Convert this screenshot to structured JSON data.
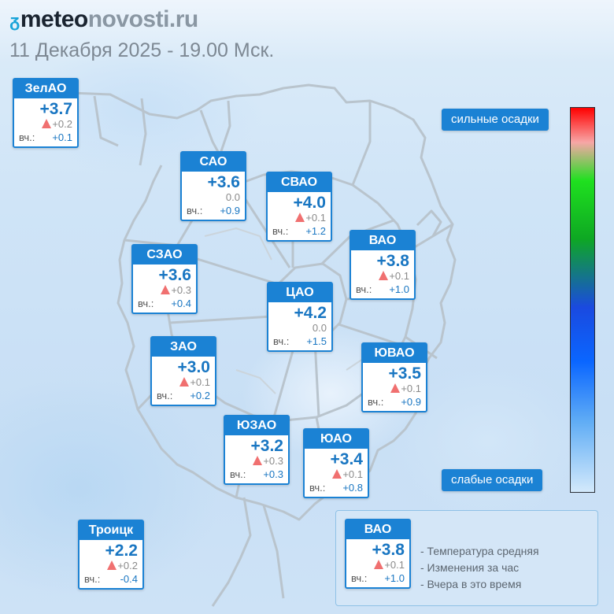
{
  "site": {
    "logo_mark": "ᵹ",
    "logo_part1": "meteo",
    "logo_part2": "novosti.ru"
  },
  "datetime": "11 Декабря 2025 - 19.00 Мск.",
  "scale": {
    "high_label": "сильные осадки",
    "low_label": "слабые осадки"
  },
  "districts": [
    {
      "id": "zelao",
      "name": "ЗелАО",
      "temp": "+3.7",
      "change": "+0.2",
      "trend": "up",
      "yesterday_label": "вч.:",
      "yesterday": "+0.1"
    },
    {
      "id": "sao",
      "name": "САО",
      "temp": "+3.6",
      "change": "0.0",
      "trend": "none",
      "yesterday_label": "вч.:",
      "yesterday": "+0.9"
    },
    {
      "id": "svao",
      "name": "СВАО",
      "temp": "+4.0",
      "change": "+0.1",
      "trend": "up",
      "yesterday_label": "вч.:",
      "yesterday": "+1.2"
    },
    {
      "id": "vao",
      "name": "ВАО",
      "temp": "+3.8",
      "change": "+0.1",
      "trend": "up",
      "yesterday_label": "вч.:",
      "yesterday": "+1.0"
    },
    {
      "id": "szao",
      "name": "СЗАО",
      "temp": "+3.6",
      "change": "+0.3",
      "trend": "up",
      "yesterday_label": "вч.:",
      "yesterday": "+0.4"
    },
    {
      "id": "cao",
      "name": "ЦАО",
      "temp": "+4.2",
      "change": "0.0",
      "trend": "none",
      "yesterday_label": "вч.:",
      "yesterday": "+1.5"
    },
    {
      "id": "zao",
      "name": "ЗАО",
      "temp": "+3.0",
      "change": "+0.1",
      "trend": "up",
      "yesterday_label": "вч.:",
      "yesterday": "+0.2"
    },
    {
      "id": "yuvao",
      "name": "ЮВАО",
      "temp": "+3.5",
      "change": "+0.1",
      "trend": "up",
      "yesterday_label": "вч.:",
      "yesterday": "+0.9"
    },
    {
      "id": "yuzao",
      "name": "ЮЗАО",
      "temp": "+3.2",
      "change": "+0.3",
      "trend": "up",
      "yesterday_label": "вч.:",
      "yesterday": "+0.3"
    },
    {
      "id": "yuao",
      "name": "ЮАО",
      "temp": "+3.4",
      "change": "+0.1",
      "trend": "up",
      "yesterday_label": "вч.:",
      "yesterday": "+0.8"
    },
    {
      "id": "troitsk",
      "name": "Троицк",
      "temp": "+2.2",
      "change": "+0.2",
      "trend": "up",
      "yesterday_label": "вч.:",
      "yesterday": "-0.4"
    }
  ],
  "legend": {
    "example": {
      "name": "ВАО",
      "temp": "+3.8",
      "change": "+0.1",
      "trend": "up",
      "yesterday_label": "вч.:",
      "yesterday": "+1.0"
    },
    "lines": [
      "- Температура средняя",
      "- Изменения за час",
      "- Вчера в это время"
    ]
  },
  "colors": {
    "card_blue": "#1b82d4",
    "value_blue": "#1976c2",
    "trend_up": "#f07070",
    "map_lines": "#b8c3cc"
  }
}
